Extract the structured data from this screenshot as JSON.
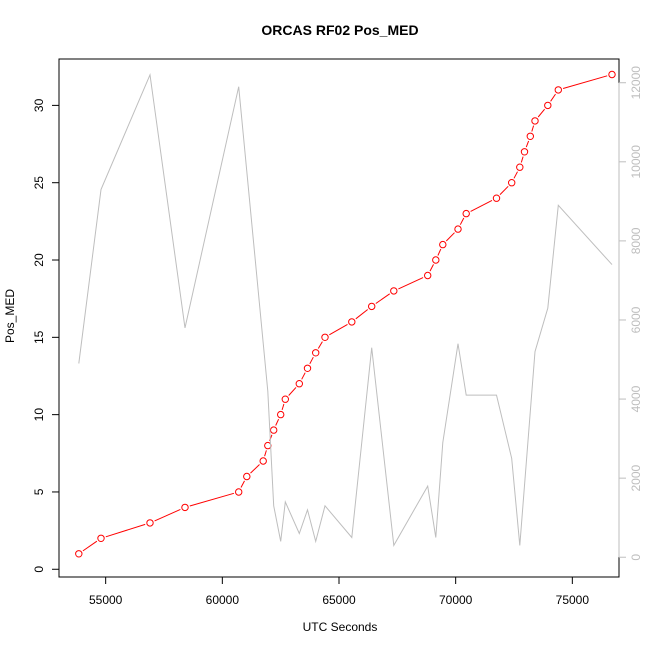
{
  "chart_data": {
    "type": "line",
    "title": "ORCAS RF02 Pos_MED",
    "xlabel": "UTC Seconds",
    "ylabel": "Pos_MED",
    "xlim": [
      53000,
      77000
    ],
    "ylim": [
      -0.5,
      33
    ],
    "y2lim": [
      -500,
      12600
    ],
    "x_ticks": [
      55000,
      60000,
      65000,
      70000,
      75000
    ],
    "y_ticks": [
      0,
      5,
      10,
      15,
      20,
      25,
      30
    ],
    "y2_ticks": [
      0,
      2000,
      4000,
      6000,
      8000,
      10000,
      12000
    ],
    "grid": false,
    "colors": {
      "primary": "#ff0000",
      "secondary": "#bebebe",
      "axis": "#000000"
    },
    "series": [
      {
        "axis": "left",
        "style": "line-points",
        "x": [
          53850,
          54800,
          56900,
          58400,
          60700,
          61050,
          61750,
          61950,
          62200,
          62500,
          62700,
          63300,
          63650,
          64000,
          64400,
          65550,
          66400,
          67350,
          68800,
          69150,
          69450,
          70100,
          70450,
          71750,
          72400,
          72750,
          72950,
          73200,
          73400,
          73950,
          74400,
          76700
        ],
        "values": [
          1,
          2,
          3,
          4,
          5,
          6,
          7,
          8,
          9,
          10,
          11,
          12,
          13,
          14,
          15,
          16,
          17,
          18,
          19,
          20,
          21,
          22,
          23,
          24,
          25,
          26,
          27,
          28,
          29,
          30,
          31,
          32
        ]
      },
      {
        "axis": "right",
        "style": "line",
        "x": [
          53850,
          54800,
          56900,
          58400,
          60700,
          61950,
          62200,
          62500,
          62700,
          63300,
          63650,
          64000,
          64400,
          65550,
          66400,
          67350,
          68800,
          69150,
          69450,
          70100,
          70450,
          71750,
          72400,
          72750,
          73400,
          73950,
          74400,
          76700
        ],
        "values": [
          4900,
          9300,
          12200,
          5800,
          11900,
          4200,
          1300,
          400,
          1400,
          600,
          1200,
          400,
          1300,
          500,
          5300,
          300,
          1800,
          500,
          2900,
          5400,
          4100,
          4100,
          2500,
          300,
          5200,
          6300,
          8900,
          7400
        ]
      }
    ]
  }
}
